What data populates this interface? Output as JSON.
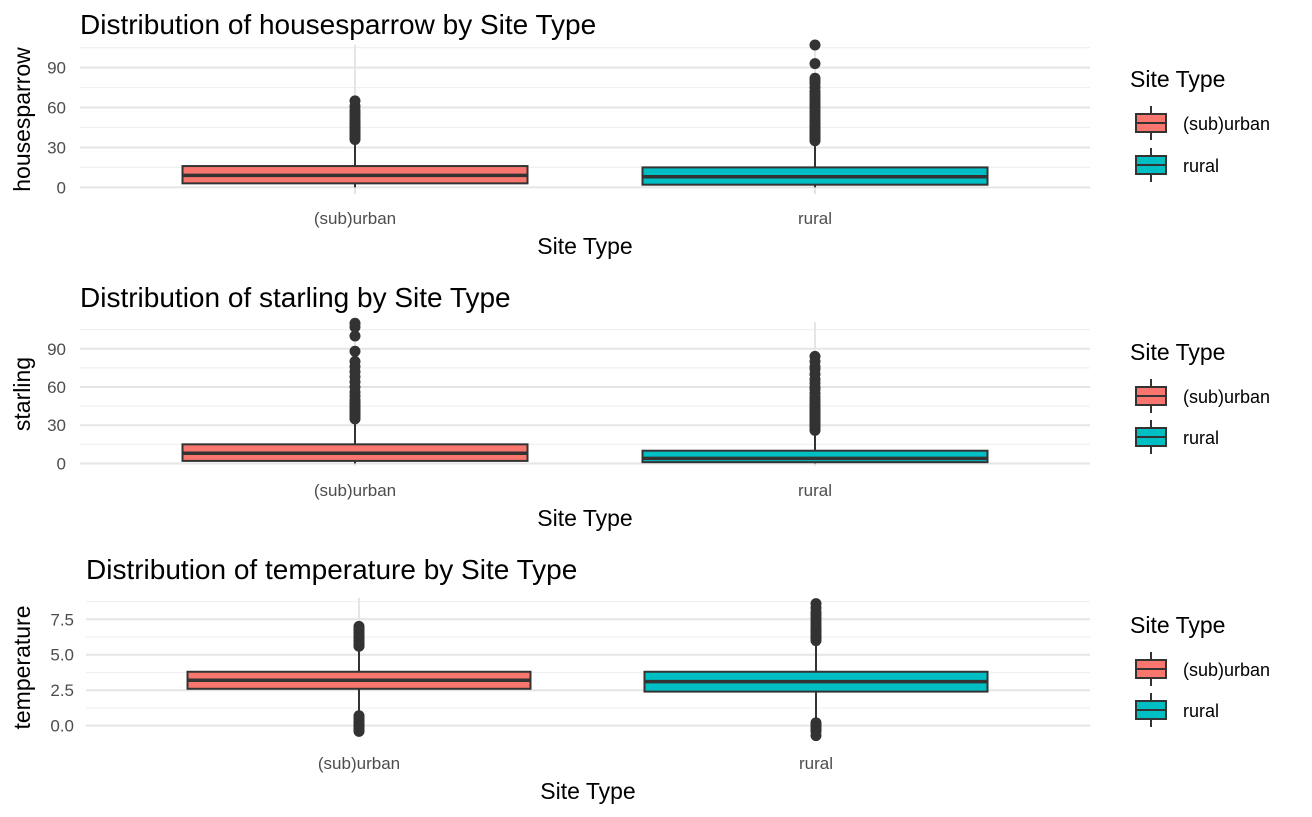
{
  "colors": {
    "suburban": "#F8766D",
    "rural": "#00BFC4",
    "box_outline": "#333333",
    "grid_major": "#e5e5e5",
    "grid_minor": "#f0f0f0"
  },
  "chart_data": [
    {
      "type": "boxplot",
      "title": "Distribution of housesparrow by Site Type",
      "xlabel": "Site Type",
      "ylabel": "housesparrow",
      "categories": [
        "(sub)urban",
        "rural"
      ],
      "yticks": [
        0,
        30,
        60,
        90
      ],
      "ytick_labels": [
        "0",
        "30",
        "60",
        "90"
      ],
      "ylim": [
        -5,
        107
      ],
      "grid": true,
      "legend_position": "right",
      "legend_title": "Site Type",
      "legend_labels": [
        "(sub)urban",
        "rural"
      ],
      "boxes": [
        {
          "category": "(sub)urban",
          "q1": 3,
          "median": 9,
          "q3": 16,
          "whisker_low": 0,
          "whisker_high": 35,
          "outliers": [
            36,
            37,
            38,
            39,
            40,
            41,
            42,
            43,
            44,
            45,
            46,
            47,
            48,
            49,
            50,
            52,
            54,
            56,
            58,
            61,
            65
          ]
        },
        {
          "category": "rural",
          "q1": 2,
          "median": 8,
          "q3": 15,
          "whisker_low": 0,
          "whisker_high": 34,
          "outliers": [
            35,
            36,
            37,
            38,
            39,
            40,
            41,
            42,
            43,
            44,
            45,
            46,
            47,
            48,
            50,
            52,
            54,
            56,
            58,
            60,
            62,
            64,
            66,
            68,
            70,
            72,
            75,
            78,
            80,
            82,
            93,
            107
          ]
        }
      ]
    },
    {
      "type": "boxplot",
      "title": "Distribution of starling by Site Type",
      "xlabel": "Site Type",
      "ylabel": "starling",
      "categories": [
        "(sub)urban",
        "rural"
      ],
      "yticks": [
        0,
        30,
        60,
        90
      ],
      "ytick_labels": [
        "0",
        "30",
        "60",
        "90"
      ],
      "ylim": [
        -2,
        111
      ],
      "grid": true,
      "legend_position": "right",
      "legend_title": "Site Type",
      "legend_labels": [
        "(sub)urban",
        "rural"
      ],
      "boxes": [
        {
          "category": "(sub)urban",
          "q1": 2,
          "median": 8,
          "q3": 15,
          "whisker_low": 0,
          "whisker_high": 34,
          "outliers": [
            35,
            36,
            37,
            38,
            39,
            40,
            41,
            42,
            43,
            44,
            45,
            46,
            47,
            48,
            50,
            53,
            56,
            60,
            64,
            68,
            72,
            76,
            80,
            88,
            100,
            107,
            110
          ]
        },
        {
          "category": "rural",
          "q1": 1,
          "median": 4,
          "q3": 10,
          "whisker_low": 0,
          "whisker_high": 25,
          "outliers": [
            26,
            27,
            28,
            29,
            30,
            31,
            32,
            33,
            34,
            35,
            36,
            37,
            38,
            39,
            40,
            41,
            42,
            43,
            44,
            45,
            46,
            48,
            50,
            52,
            55,
            58,
            60,
            63,
            66,
            70,
            74,
            76,
            80,
            84
          ]
        }
      ]
    },
    {
      "type": "boxplot",
      "title": "Distribution of temperature by Site Type",
      "xlabel": "Site Type",
      "ylabel": "temperature",
      "categories": [
        "(sub)urban",
        "rural"
      ],
      "yticks": [
        0,
        2.5,
        5,
        7.5
      ],
      "ytick_labels": [
        "0.0",
        "2.5",
        "5.0",
        "7.5"
      ],
      "ylim": [
        -0.8,
        9.0
      ],
      "grid": true,
      "legend_position": "right",
      "legend_title": "Site Type",
      "legend_labels": [
        "(sub)urban",
        "rural"
      ],
      "boxes": [
        {
          "category": "(sub)urban",
          "q1": 2.6,
          "median": 3.2,
          "q3": 3.8,
          "whisker_low": 0.9,
          "whisker_high": 5.5,
          "outliers": [
            -0.4,
            -0.3,
            -0.2,
            -0.1,
            0.0,
            0.1,
            0.2,
            0.3,
            0.4,
            0.5,
            0.6,
            0.7,
            5.6,
            5.7,
            5.8,
            5.9,
            6.0,
            6.1,
            6.2,
            6.3,
            6.4,
            6.5,
            6.6,
            6.7,
            6.8,
            6.9,
            7.0
          ]
        },
        {
          "category": "rural",
          "q1": 2.4,
          "median": 3.1,
          "q3": 3.8,
          "whisker_low": 0.4,
          "whisker_high": 5.8,
          "outliers": [
            -0.7,
            -0.4,
            -0.3,
            -0.2,
            -0.1,
            0.0,
            0.1,
            0.2,
            6.0,
            6.1,
            6.2,
            6.3,
            6.4,
            6.5,
            6.6,
            6.7,
            6.8,
            6.9,
            7.0,
            7.2,
            7.4,
            7.6,
            7.8,
            8.0,
            8.3,
            8.6
          ]
        }
      ]
    }
  ]
}
